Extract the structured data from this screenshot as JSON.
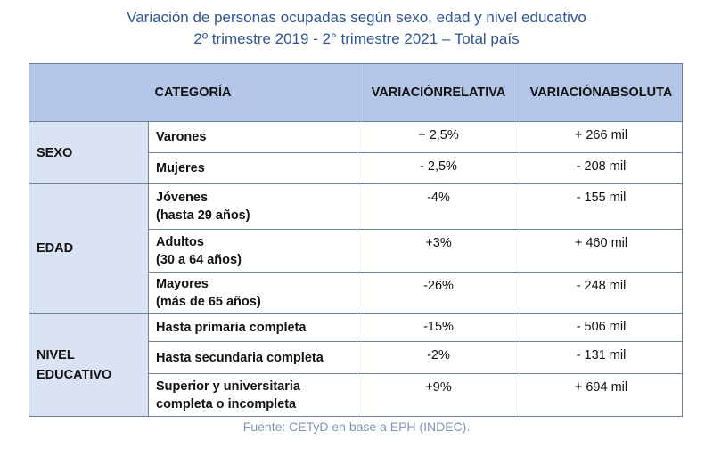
{
  "title": {
    "lines": [
      "Variación de personas ocupadas según sexo, edad y nivel educativo",
      "2º trimestre 2019 - 2° trimestre 2021 – Total país"
    ]
  },
  "table": {
    "header": {
      "category": "CATEGORÍA",
      "relative": [
        "VARIACIÓN",
        "RELATIVA"
      ],
      "absolute": [
        "VARIACIÓN",
        "ABSOLUTA"
      ]
    },
    "groups": [
      {
        "name": [
          "SEXO"
        ],
        "rows": [
          {
            "label": [
              "Varones"
            ],
            "relative": "+ 2,5%",
            "absolute": "+ 266 mil"
          },
          {
            "label": [
              "Mujeres"
            ],
            "relative": "- 2,5%",
            "absolute": "- 208 mil"
          }
        ]
      },
      {
        "name": [
          "EDAD"
        ],
        "rows": [
          {
            "label": [
              "Jóvenes",
              "(hasta 29 años)"
            ],
            "relative": "-4%",
            "absolute": "- 155 mil"
          },
          {
            "label": [
              "Adultos",
              "(30 a 64 años)"
            ],
            "relative": "+3%",
            "absolute": "+ 460 mil"
          },
          {
            "label": [
              "Mayores",
              "(más de 65 años)"
            ],
            "relative": "-26%",
            "absolute": "- 248 mil"
          }
        ]
      },
      {
        "name": [
          "NIVEL",
          "EDUCATIVO"
        ],
        "rows": [
          {
            "label": [
              "Hasta primaria completa"
            ],
            "relative": "-15%",
            "absolute": "- 506 mil"
          },
          {
            "label": [
              "Hasta secundaria completa"
            ],
            "relative": "-2%",
            "absolute": "- 131 mil"
          },
          {
            "label": [
              "Superior y universitaria",
              "completa o incompleta"
            ],
            "relative": "+9%",
            "absolute": "+ 694 mil"
          }
        ]
      }
    ]
  },
  "footer": "Fuente: CETyD en base a EPH (INDEC)."
}
